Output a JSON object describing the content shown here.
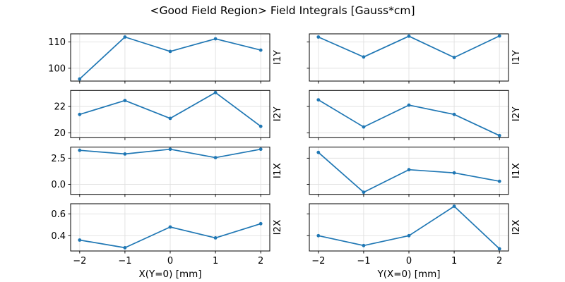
{
  "title": "<Good Field Region> Field Integrals [Gauss*cm]",
  "colors": {
    "line": "#1f77b4",
    "grid": "#e0e0e0",
    "spine": "#000000",
    "text": "#000000"
  },
  "chart_data": [
    {
      "id": "i1y-vs-x",
      "type": "line",
      "row": 0,
      "col": 0,
      "ylabel": "I1Y",
      "xlabel": "",
      "x": [
        -2,
        -1,
        0,
        1,
        2
      ],
      "y": [
        95.9,
        111.9,
        106.4,
        111.2,
        106.9
      ],
      "xlim": [
        -2.2,
        2.2
      ],
      "ylim": [
        95.1,
        113.1
      ],
      "xticks": [
        -2,
        -1,
        0,
        1,
        2
      ],
      "xtick_labels": [
        "−2",
        "−1",
        "0",
        "1",
        "2"
      ],
      "yticks": [
        100,
        110
      ],
      "ytick_labels": [
        "100",
        "110"
      ],
      "show_xtick_labels": false,
      "show_ytick_labels": true,
      "grid": true,
      "legend": null
    },
    {
      "id": "i1y-vs-y",
      "type": "line",
      "row": 0,
      "col": 1,
      "ylabel": "I1Y",
      "xlabel": "",
      "x": [
        -2,
        -1,
        0,
        1,
        2
      ],
      "y": [
        111.9,
        104.3,
        112.2,
        104.1,
        112.3
      ],
      "xlim": [
        -2.2,
        2.2
      ],
      "ylim": [
        95.1,
        113.1
      ],
      "xticks": [
        -2,
        -1,
        0,
        1,
        2
      ],
      "xtick_labels": [
        "−2",
        "−1",
        "0",
        "1",
        "2"
      ],
      "yticks": [
        100,
        110
      ],
      "ytick_labels": [
        "100",
        "110"
      ],
      "show_xtick_labels": false,
      "show_ytick_labels": false,
      "grid": true,
      "legend": null
    },
    {
      "id": "i2y-vs-x",
      "type": "line",
      "row": 1,
      "col": 0,
      "ylabel": "I2Y",
      "xlabel": "",
      "x": [
        -2,
        -1,
        0,
        1,
        2
      ],
      "y": [
        21.4,
        22.45,
        21.1,
        23.05,
        20.5
      ],
      "xlim": [
        -2.2,
        2.2
      ],
      "ylim": [
        19.64,
        23.21
      ],
      "xticks": [
        -2,
        -1,
        0,
        1,
        2
      ],
      "xtick_labels": [
        "−2",
        "−1",
        "0",
        "1",
        "2"
      ],
      "yticks": [
        20,
        22
      ],
      "ytick_labels": [
        "20",
        "22"
      ],
      "show_xtick_labels": false,
      "show_ytick_labels": true,
      "grid": true,
      "legend": null
    },
    {
      "id": "i2y-vs-y",
      "type": "line",
      "row": 1,
      "col": 1,
      "ylabel": "I2Y",
      "xlabel": "",
      "x": [
        -2,
        -1,
        0,
        1,
        2
      ],
      "y": [
        22.5,
        20.45,
        22.1,
        21.4,
        19.8
      ],
      "xlim": [
        -2.2,
        2.2
      ],
      "ylim": [
        19.64,
        23.21
      ],
      "xticks": [
        -2,
        -1,
        0,
        1,
        2
      ],
      "xtick_labels": [
        "−2",
        "−1",
        "0",
        "1",
        "2"
      ],
      "yticks": [
        20,
        22
      ],
      "ytick_labels": [
        "20",
        "22"
      ],
      "show_xtick_labels": false,
      "show_ytick_labels": false,
      "grid": true,
      "legend": null
    },
    {
      "id": "i1x-vs-x",
      "type": "line",
      "row": 2,
      "col": 0,
      "ylabel": "I1X",
      "xlabel": "",
      "x": [
        -2,
        -1,
        0,
        1,
        2
      ],
      "y": [
        3.25,
        2.9,
        3.35,
        2.55,
        3.35
      ],
      "xlim": [
        -2.2,
        2.2
      ],
      "ylim": [
        -0.955,
        3.555
      ],
      "xticks": [
        -2,
        -1,
        0,
        1,
        2
      ],
      "xtick_labels": [
        "−2",
        "−1",
        "0",
        "1",
        "2"
      ],
      "yticks": [
        0.0,
        2.5
      ],
      "ytick_labels": [
        "0.0",
        "2.5"
      ],
      "show_xtick_labels": false,
      "show_ytick_labels": true,
      "grid": true,
      "legend": null
    },
    {
      "id": "i1x-vs-y",
      "type": "line",
      "row": 2,
      "col": 1,
      "ylabel": "I1X",
      "xlabel": "",
      "x": [
        -2,
        -1,
        0,
        1,
        2
      ],
      "y": [
        3.05,
        -0.75,
        1.4,
        1.1,
        0.3
      ],
      "xlim": [
        -2.2,
        2.2
      ],
      "ylim": [
        -0.955,
        3.555
      ],
      "xticks": [
        -2,
        -1,
        0,
        1,
        2
      ],
      "xtick_labels": [
        "−2",
        "−1",
        "0",
        "1",
        "2"
      ],
      "yticks": [
        0.0,
        2.5
      ],
      "ytick_labels": [
        "0.0",
        "2.5"
      ],
      "show_xtick_labels": false,
      "show_ytick_labels": false,
      "grid": true,
      "legend": null
    },
    {
      "id": "i2x-vs-x",
      "type": "line",
      "row": 3,
      "col": 0,
      "ylabel": "I2X",
      "xlabel": "X(Y=0) [mm]",
      "x": [
        -2,
        -1,
        0,
        1,
        2
      ],
      "y": [
        0.36,
        0.29,
        0.48,
        0.38,
        0.51
      ],
      "xlim": [
        -2.2,
        2.2
      ],
      "ylim": [
        0.26,
        0.693
      ],
      "xticks": [
        -2,
        -1,
        0,
        1,
        2
      ],
      "xtick_labels": [
        "−2",
        "−1",
        "0",
        "1",
        "2"
      ],
      "yticks": [
        0.4,
        0.6
      ],
      "ytick_labels": [
        "0.4",
        "0.6"
      ],
      "show_xtick_labels": true,
      "show_ytick_labels": true,
      "grid": true,
      "legend": null
    },
    {
      "id": "i2x-vs-y",
      "type": "line",
      "row": 3,
      "col": 1,
      "ylabel": "I2X",
      "xlabel": "Y(X=0) [mm]",
      "x": [
        -2,
        -1,
        0,
        1,
        2
      ],
      "y": [
        0.4,
        0.31,
        0.4,
        0.67,
        0.28
      ],
      "xlim": [
        -2.2,
        2.2
      ],
      "ylim": [
        0.26,
        0.693
      ],
      "xticks": [
        -2,
        -1,
        0,
        1,
        2
      ],
      "xtick_labels": [
        "−2",
        "−1",
        "0",
        "1",
        "2"
      ],
      "yticks": [
        0.4,
        0.6
      ],
      "ytick_labels": [
        "0.4",
        "0.6"
      ],
      "show_xtick_labels": true,
      "show_ytick_labels": false,
      "grid": true,
      "legend": null
    }
  ]
}
